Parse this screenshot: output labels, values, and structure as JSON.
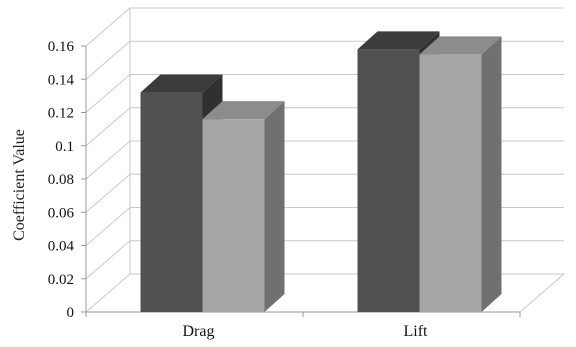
{
  "chart_data": {
    "type": "bar",
    "categories": [
      "Drag",
      "Lift"
    ],
    "series": [
      {
        "values": [
          0.132,
          0.158
        ]
      },
      {
        "values": [
          0.116,
          0.155
        ]
      }
    ],
    "ylabel": "Coefficient Value",
    "xlabel": "",
    "ylim": [
      0,
      0.16
    ],
    "ytick_labels": [
      "0",
      "0.02",
      "0.04",
      "0.06",
      "0.08",
      "0.1",
      "0.12",
      "0.14",
      "0.16"
    ],
    "grid": true,
    "style": "3d-clustered-bar",
    "colors": {
      "series1_front": "#4f5152",
      "series1_top": "#3a3c3d",
      "series1_side": "#2e3031",
      "series2_front": "#a6a6a6",
      "series2_top": "#8c8c8c",
      "series2_side": "#6f7071",
      "grid": "#c8c8c8",
      "axis": "#999999"
    }
  }
}
